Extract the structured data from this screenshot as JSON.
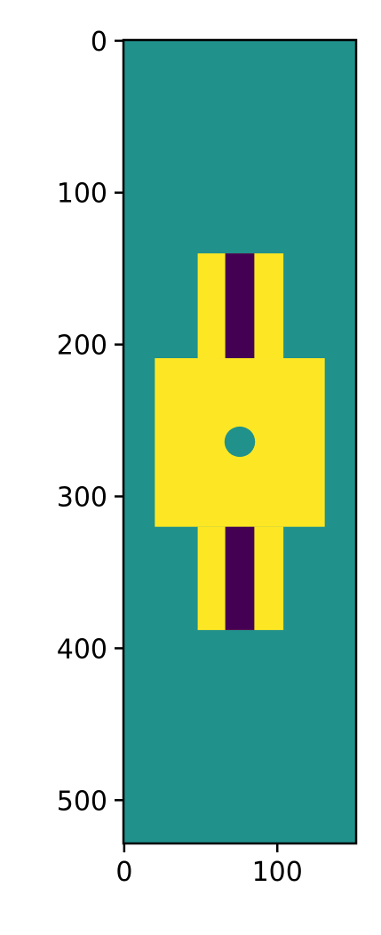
{
  "chart_data": {
    "type": "heatmap",
    "colormap": "viridis",
    "colors": {
      "low": "#440154",
      "mid": "#21918c",
      "high": "#fde725",
      "axis": "#000000"
    },
    "image_shape": {
      "rows": 529,
      "cols": 152
    },
    "xlim": [
      -0.5,
      151.5
    ],
    "ylim": [
      528.5,
      -0.5
    ],
    "x_ticks": [
      0,
      100
    ],
    "y_ticks": [
      0,
      100,
      200,
      300,
      400,
      500
    ],
    "x_tick_labels": [
      "0",
      "100"
    ],
    "y_tick_labels": [
      "0",
      "100",
      "200",
      "300",
      "400",
      "500"
    ],
    "background_value": "mid",
    "regions": [
      {
        "name": "upper-stem",
        "value": "high",
        "x": [
          48,
          104
        ],
        "y": [
          140,
          209
        ]
      },
      {
        "name": "middle-block",
        "value": "high",
        "x": [
          20,
          131
        ],
        "y": [
          209,
          320
        ]
      },
      {
        "name": "lower-stem",
        "value": "high",
        "x": [
          48,
          104
        ],
        "y": [
          320,
          388
        ]
      },
      {
        "name": "upper-stripe",
        "value": "low",
        "x": [
          66,
          85
        ],
        "y": [
          140,
          209
        ]
      },
      {
        "name": "lower-stripe",
        "value": "low",
        "x": [
          66,
          85
        ],
        "y": [
          320,
          388
        ]
      }
    ],
    "hole": {
      "name": "center-hole",
      "value": "mid",
      "cx": 75.5,
      "cy": 264,
      "r": 10
    },
    "grid": false
  }
}
